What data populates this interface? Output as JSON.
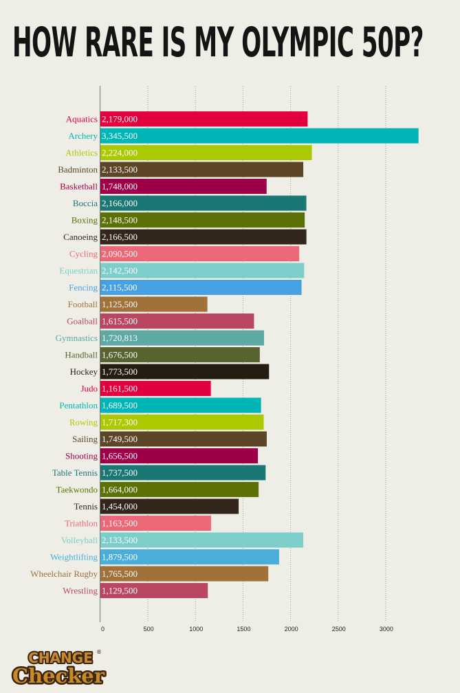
{
  "title": "HOW RARE IS MY OLYMPIC 50P?",
  "logo": {
    "line1": "CHANGE",
    "line2": "Checker",
    "mark": "®"
  },
  "colors": {
    "background": "#efeee6",
    "title": "#141414",
    "axis": "#777777",
    "gridline": "#999999",
    "value_label": "#ffffff",
    "logo_fill": "#c98a2c",
    "logo_outline": "#3a2412"
  },
  "chart_data": {
    "type": "bar",
    "orientation": "horizontal",
    "title": "HOW RARE IS MY OLYMPIC 50P?",
    "xlabel": "",
    "ylabel": "",
    "xlim": [
      0,
      3500
    ],
    "x_ticks": [
      0,
      500,
      1000,
      1500,
      2000,
      2500,
      3000
    ],
    "x_tick_labels": [
      "0",
      "500",
      "1000",
      "1500",
      "2000",
      "2500",
      "3000"
    ],
    "tick_units_note": "tick labels in thousands",
    "grid": "vertical dotted",
    "categories": [
      "Aquatics",
      "Archery",
      "Athletics",
      "Badminton",
      "Basketball",
      "Boccia",
      "Boxing",
      "Canoeing",
      "Cycling",
      "Equestrian",
      "Fencing",
      "Football",
      "Goalball",
      "Gymnastics",
      "Handball",
      "Hockey",
      "Judo",
      "Pentathlon",
      "Rowing",
      "Sailing",
      "Shooting",
      "Table Tennis",
      "Taekwondo",
      "Tennis",
      "Triathlon",
      "Volleyball",
      "Weightlifting",
      "Wheelchair Rugby",
      "Wrestling"
    ],
    "values": [
      2179000,
      3345500,
      2224000,
      2133500,
      1748000,
      2166000,
      2148500,
      2166500,
      2090500,
      2142500,
      2115500,
      1125500,
      1615500,
      1720813,
      1676500,
      1773500,
      1161500,
      1689500,
      1717300,
      1749500,
      1656500,
      1737500,
      1664000,
      1454000,
      1163500,
      2133500,
      1879500,
      1765500,
      1129500
    ],
    "value_labels": [
      "2,179,000",
      "3,345,500",
      "2,224,000",
      "2,133,500",
      "1,748,000",
      "2,166,000",
      "2,148,500",
      "2,166,500",
      "2,090,500",
      "2,142,500",
      "2,115,500",
      "1,125,500",
      "1,615,500",
      "1,720,813",
      "1,676,500",
      "1,773,500",
      "1,161,500",
      "1,689,500",
      "1,717,300",
      "1,749,500",
      "1,656,500",
      "1,737,500",
      "1,664,000",
      "1,454,000",
      "1,163,500",
      "2,133,500",
      "1,879,500",
      "1,765,500",
      "1,129,500"
    ],
    "bar_colors": [
      "#e3003f",
      "#00b5b5",
      "#acc800",
      "#5d4628",
      "#9e0048",
      "#1a7774",
      "#5b7106",
      "#32261a",
      "#ea6878",
      "#7dcdcb",
      "#45a1e4",
      "#a0723a",
      "#b94762",
      "#5ea9a3",
      "#57642f",
      "#251c12",
      "#e3003f",
      "#00b5b5",
      "#acc800",
      "#5d4628",
      "#9e0048",
      "#1a7774",
      "#5b7106",
      "#32261a",
      "#ea6878",
      "#7dcdcb",
      "#4aaedb",
      "#a0723a",
      "#b94762"
    ],
    "category_label_colors": [
      "#e3003f",
      "#00b5b5",
      "#acc800",
      "#5d4628",
      "#9e0048",
      "#1a7774",
      "#5b7106",
      "#32261a",
      "#ea6878",
      "#7dcdcb",
      "#45a1e4",
      "#a0723a",
      "#b94762",
      "#5ea9a3",
      "#57642f",
      "#251c12",
      "#e3003f",
      "#00b5b5",
      "#acc800",
      "#5d4628",
      "#9e0048",
      "#1a7774",
      "#5b7106",
      "#32261a",
      "#ea6878",
      "#7dcdcb",
      "#4aaedb",
      "#a0723a",
      "#b94762"
    ]
  }
}
